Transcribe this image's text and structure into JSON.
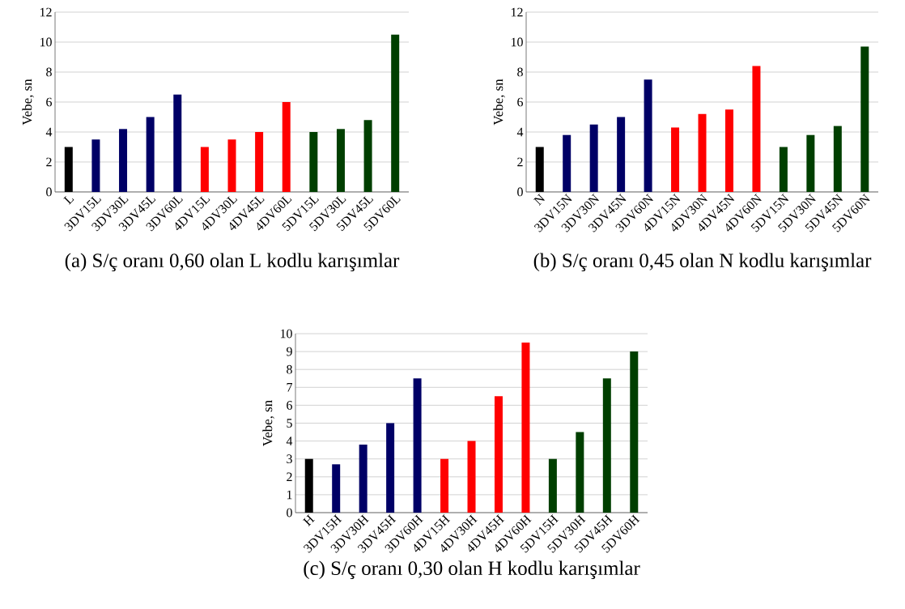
{
  "chart_data": [
    {
      "type": "bar",
      "title": "(a) S/ç oranı 0,60 olan L kodlu karışımlar",
      "ylabel": "Vebe, sn",
      "categories": [
        "L",
        "3DV15L",
        "3DV30L",
        "3DV45L",
        "3DV60L",
        "4DV15L",
        "4DV30L",
        "4DV45L",
        "4DV60L",
        "5DV15L",
        "5DV30L",
        "5DV45L",
        "5DV60L"
      ],
      "values": [
        3,
        3.5,
        4.2,
        5,
        6.5,
        3,
        3.5,
        4,
        6,
        4,
        4.2,
        4.8,
        10.5
      ],
      "colors": [
        "#000000",
        "#000066",
        "#000066",
        "#000066",
        "#000066",
        "#ff0000",
        "#ff0000",
        "#ff0000",
        "#ff0000",
        "#003f00",
        "#003f00",
        "#003f00",
        "#003f00"
      ],
      "ylim": [
        0,
        12
      ],
      "yticks": [
        0,
        2,
        4,
        6,
        8,
        10,
        12
      ],
      "grid": "y"
    },
    {
      "type": "bar",
      "title": "(b) S/ç oranı 0,45 olan N kodlu karışımlar",
      "ylabel": "Vebe, sn",
      "categories": [
        "N",
        "3DV15N",
        "3DV30N",
        "3DV45N",
        "3DV60N",
        "4DV15N",
        "4DV30N",
        "4DV45N",
        "4DV60N",
        "5DV15N",
        "5DV30N",
        "5DV45N",
        "5DV60N"
      ],
      "values": [
        3,
        3.8,
        4.5,
        5,
        7.5,
        4.3,
        5.2,
        5.5,
        8.4,
        3,
        3.8,
        4.4,
        9.7
      ],
      "colors": [
        "#000000",
        "#000066",
        "#000066",
        "#000066",
        "#000066",
        "#ff0000",
        "#ff0000",
        "#ff0000",
        "#ff0000",
        "#003f00",
        "#003f00",
        "#003f00",
        "#003f00"
      ],
      "ylim": [
        0,
        12
      ],
      "yticks": [
        0,
        2,
        4,
        6,
        8,
        10,
        12
      ],
      "grid": "y"
    },
    {
      "type": "bar",
      "title": "(c) S/ç oranı 0,30 olan H kodlu karışımlar",
      "ylabel": "Vebe, sn",
      "categories": [
        "H",
        "3DV15H",
        "3DV30H",
        "3DV45H",
        "3DV60H",
        "4DV15H",
        "4DV30H",
        "4DV45H",
        "4DV60H",
        "5DV15H",
        "5DV30H",
        "5DV45H",
        "5DV60H"
      ],
      "values": [
        3,
        2.7,
        3.8,
        5,
        7.5,
        3,
        4,
        6.5,
        9.5,
        3,
        4.5,
        7.5,
        9
      ],
      "colors": [
        "#000000",
        "#000066",
        "#000066",
        "#000066",
        "#000066",
        "#ff0000",
        "#ff0000",
        "#ff0000",
        "#ff0000",
        "#003f00",
        "#003f00",
        "#003f00",
        "#003f00"
      ],
      "ylim": [
        0,
        10
      ],
      "yticks": [
        0,
        1,
        2,
        3,
        4,
        5,
        6,
        7,
        8,
        9,
        10
      ],
      "grid": "y"
    }
  ]
}
